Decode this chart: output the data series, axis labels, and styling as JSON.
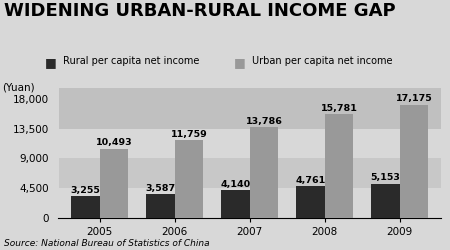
{
  "title": "WIDENING URBAN-RURAL INCOME GAP",
  "ylabel": "(Yuan)",
  "source": "Source: National Bureau of Statistics of China",
  "years": [
    2005,
    2006,
    2007,
    2008,
    2009
  ],
  "rural": [
    3255,
    3587,
    4140,
    4761,
    5153
  ],
  "urban": [
    10493,
    11759,
    13786,
    15781,
    17175
  ],
  "rural_color": "#2a2a2a",
  "urban_color": "#999999",
  "bg_color": "#d8d8d8",
  "plot_bg_top": "#c8c8c8",
  "plot_bg_mid": "#e0e0e0",
  "plot_bg_bot": "#d0d0d0",
  "yticks": [
    0,
    4500,
    9000,
    13500,
    18000
  ],
  "ytick_labels": [
    "0",
    "4,500",
    "9,000",
    "13,500",
    "18,000"
  ],
  "ylim": [
    0,
    19800
  ],
  "legend_rural": "Rural per capita net income",
  "legend_urban": "Urban per capita net income",
  "bar_width": 0.38,
  "title_fontsize": 13,
  "label_fontsize": 6.8,
  "tick_fontsize": 7.5
}
